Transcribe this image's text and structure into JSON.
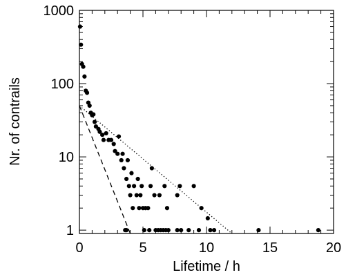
{
  "chart_data": {
    "type": "scatter",
    "title": "",
    "xlabel": "Lifetime / h",
    "ylabel": "Nr. of contrails",
    "xlim": [
      0,
      20
    ],
    "ylim": [
      0.9,
      1000
    ],
    "yscale": "log",
    "x_ticks": [
      "0",
      "5",
      "10",
      "15",
      "20"
    ],
    "y_ticks": [
      "1",
      "10",
      "100",
      "1000"
    ],
    "grid": false,
    "legend": "none",
    "colors": {
      "points": "#000000",
      "lines": "#000000"
    },
    "series": [
      {
        "style": "markers",
        "points": [
          [
            0.05,
            600
          ],
          [
            0.12,
            340
          ],
          [
            0.2,
            185
          ],
          [
            0.3,
            170
          ],
          [
            0.4,
            125
          ],
          [
            0.5,
            80
          ],
          [
            0.6,
            75
          ],
          [
            0.7,
            55
          ],
          [
            0.8,
            50
          ],
          [
            0.9,
            40
          ],
          [
            1.0,
            37
          ],
          [
            1.1,
            38
          ],
          [
            1.2,
            30
          ],
          [
            1.3,
            26
          ],
          [
            1.5,
            24
          ],
          [
            1.6,
            22
          ],
          [
            1.8,
            20
          ],
          [
            1.9,
            17
          ],
          [
            2.1,
            21
          ],
          [
            2.3,
            17
          ],
          [
            2.5,
            17
          ],
          [
            2.7,
            15
          ],
          [
            2.8,
            12
          ],
          [
            3.0,
            11
          ],
          [
            3.1,
            19
          ],
          [
            3.3,
            9
          ],
          [
            3.4,
            11
          ],
          [
            3.5,
            7
          ],
          [
            3.7,
            5
          ],
          [
            3.8,
            9
          ],
          [
            3.9,
            4
          ],
          [
            4.0,
            3
          ],
          [
            4.1,
            6
          ],
          [
            4.2,
            2
          ],
          [
            4.3,
            4
          ],
          [
            4.5,
            3
          ],
          [
            4.6,
            5
          ],
          [
            4.7,
            2
          ],
          [
            4.8,
            3
          ],
          [
            4.9,
            4
          ],
          [
            5.0,
            2
          ],
          [
            5.2,
            2
          ],
          [
            5.4,
            2
          ],
          [
            5.7,
            7
          ],
          [
            5.6,
            4
          ],
          [
            5.9,
            3
          ],
          [
            6.3,
            3
          ],
          [
            6.7,
            4
          ],
          [
            6.9,
            2
          ],
          [
            7.7,
            3
          ],
          [
            7.9,
            4
          ],
          [
            9.0,
            4
          ],
          [
            9.6,
            2
          ],
          [
            10.1,
            1.45
          ],
          [
            3.6,
            1
          ],
          [
            3.7,
            1
          ],
          [
            5.1,
            1
          ],
          [
            5.5,
            1
          ],
          [
            6.0,
            1
          ],
          [
            6.2,
            1
          ],
          [
            6.4,
            1
          ],
          [
            6.6,
            1
          ],
          [
            6.8,
            1
          ],
          [
            7.0,
            1
          ],
          [
            7.7,
            1
          ],
          [
            8.0,
            1
          ],
          [
            8.6,
            1
          ],
          [
            9.4,
            1
          ],
          [
            10.3,
            1
          ],
          [
            10.6,
            1
          ],
          [
            14.1,
            1
          ],
          [
            18.8,
            1
          ]
        ]
      },
      {
        "style": "dashed",
        "points": [
          [
            0,
            50
          ],
          [
            4.0,
            0.9
          ]
        ]
      },
      {
        "style": "dotted",
        "points": [
          [
            0,
            50
          ],
          [
            12.0,
            0.9
          ]
        ]
      }
    ]
  }
}
